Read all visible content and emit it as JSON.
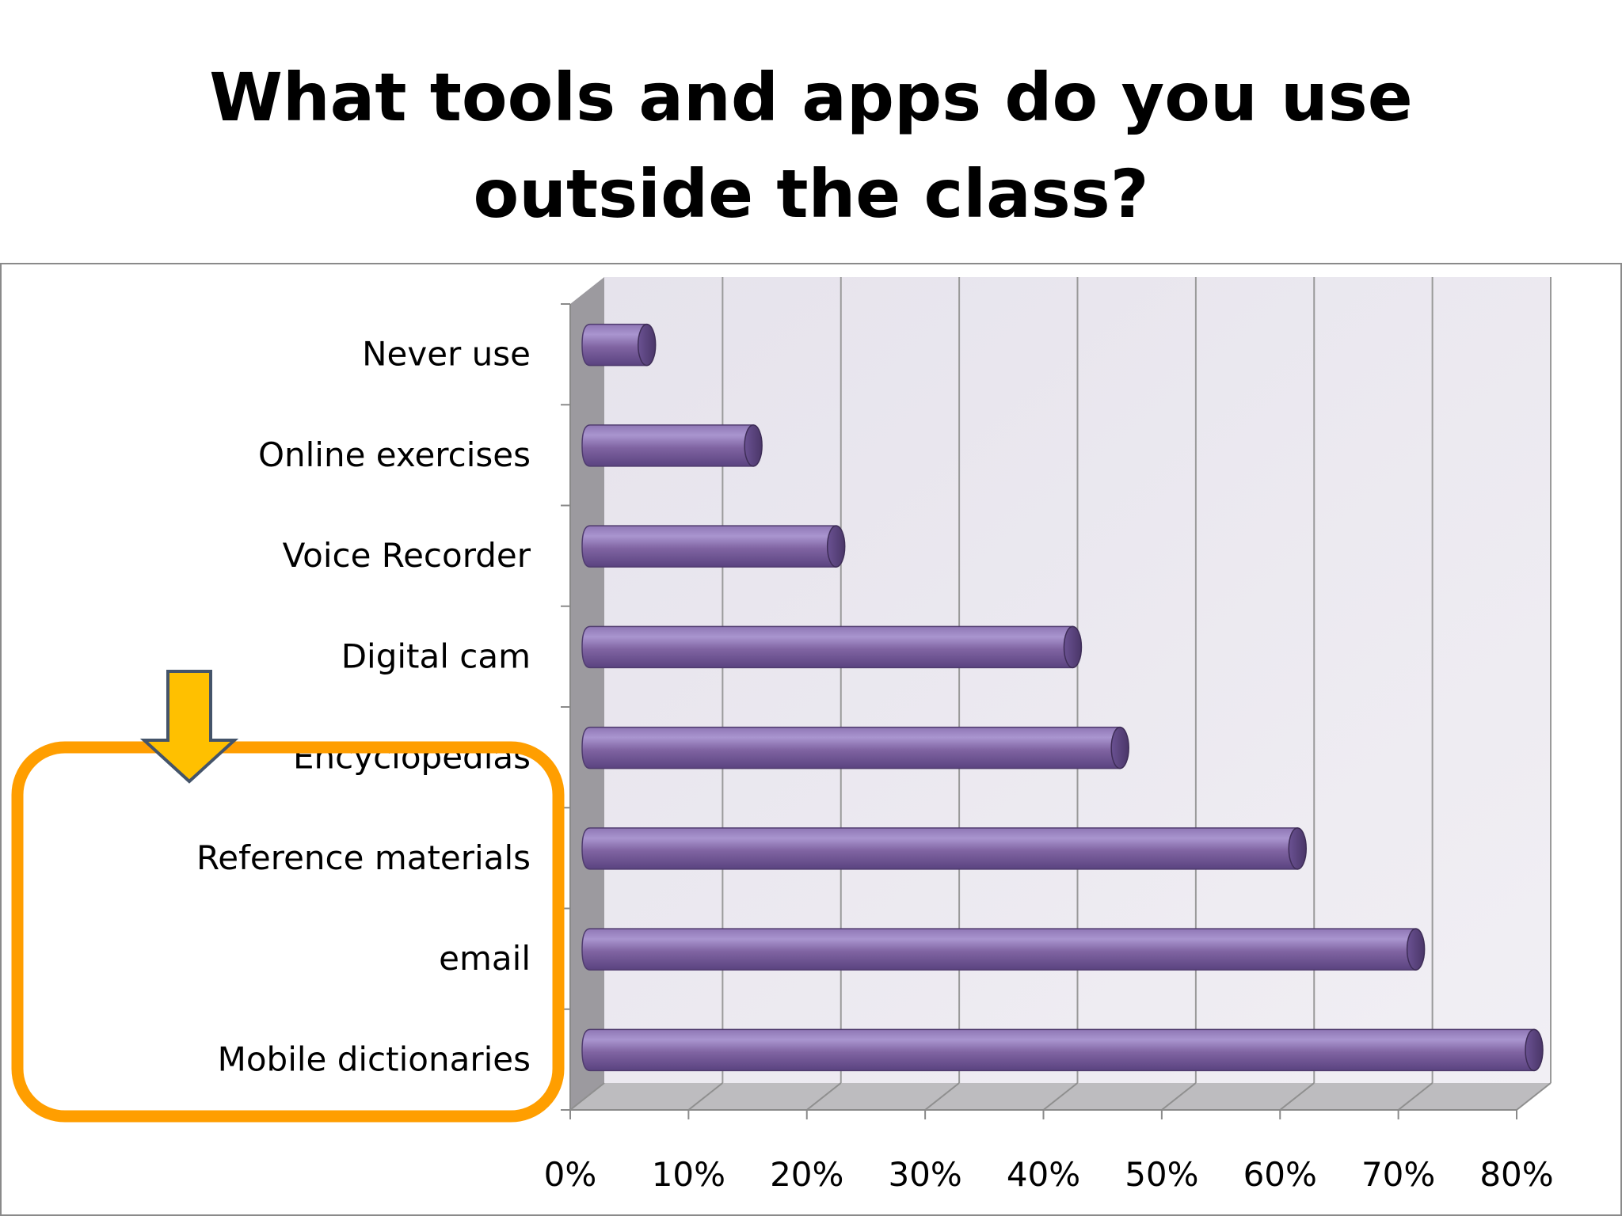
{
  "slide": {
    "title_line1": "What tools and apps do you use",
    "title_line2": "outside the class?"
  },
  "chart_data": {
    "type": "bar",
    "orientation": "horizontal",
    "style": "3d-cylinder",
    "categories": [
      "Never use",
      "Online exercises",
      "Voice Recorder",
      "Digital cam",
      "Encyclopedias",
      "Reference materials",
      "email",
      "Mobile dictionaries"
    ],
    "values": [
      5,
      14,
      21,
      41,
      45,
      60,
      70,
      80
    ],
    "value_unit": "%",
    "xlim": [
      0,
      80
    ],
    "x_ticks": [
      "0%",
      "10%",
      "20%",
      "30%",
      "40%",
      "50%",
      "60%",
      "70%",
      "80%"
    ],
    "grid": true,
    "title": "",
    "xlabel": "",
    "ylabel": ""
  },
  "colors": {
    "bar": "#8064a2",
    "bar_dark": "#4f3b6e",
    "bar_light": "#a08cc4",
    "plot_wall": "#ece9f1",
    "floor": "#bebebe",
    "side_wall": "#9a9a9a",
    "highlight_box": "#ff9e00",
    "arrow_fill": "#ffc000",
    "arrow_stroke": "#44546a"
  }
}
